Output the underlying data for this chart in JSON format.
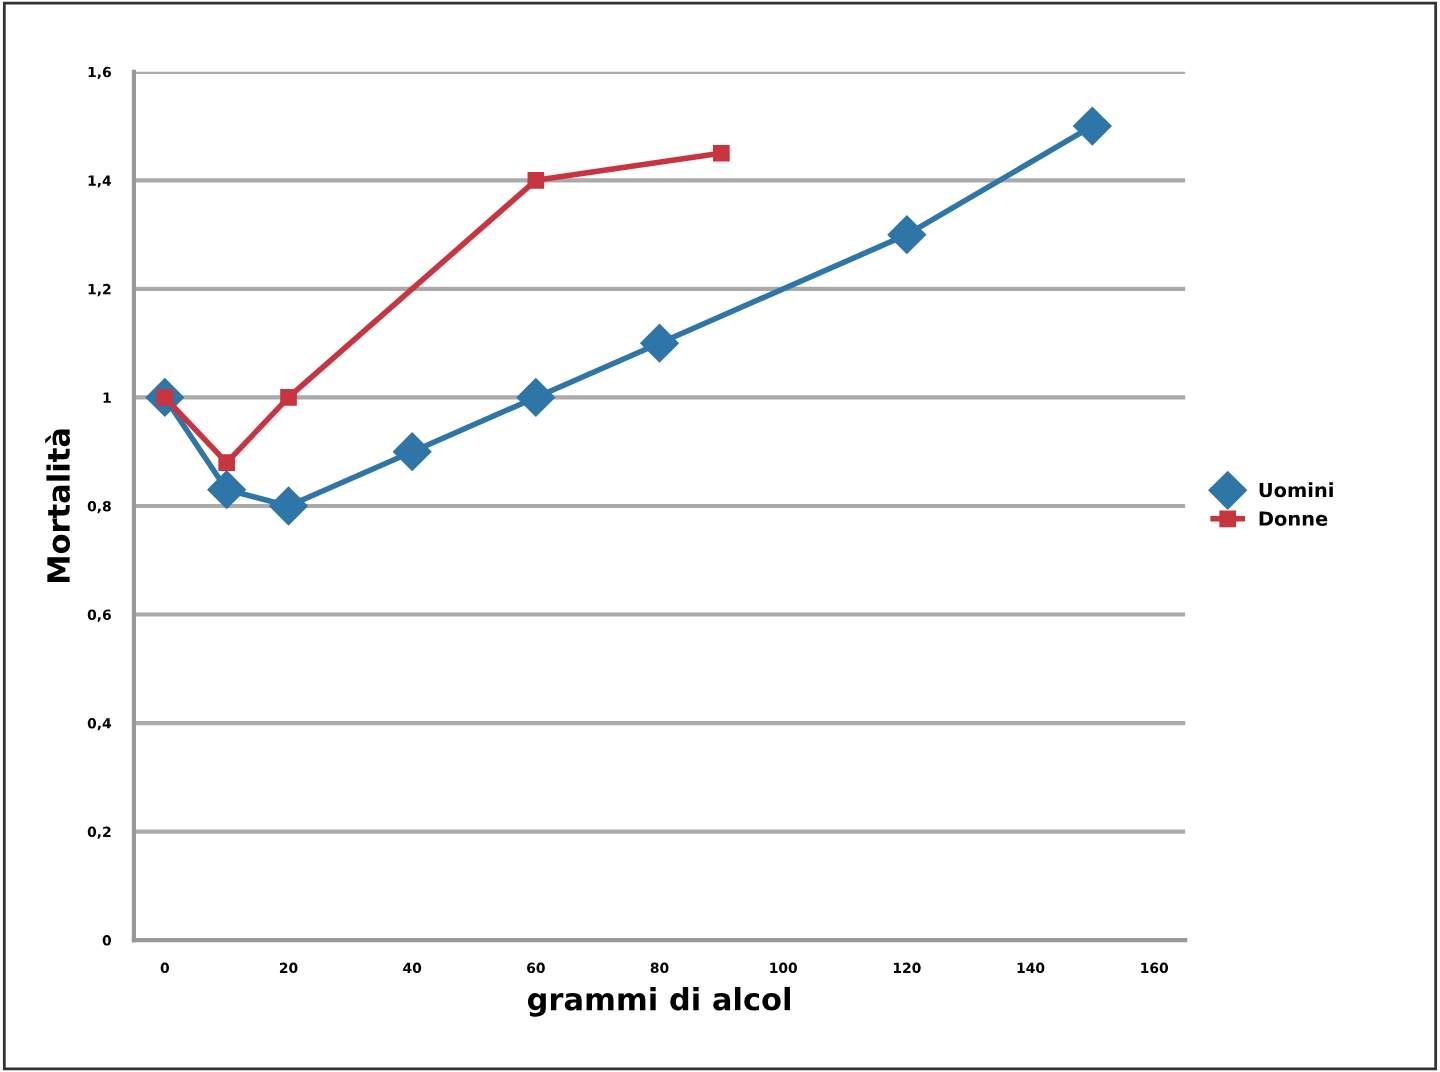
{
  "chart_data": {
    "type": "line",
    "xlabel": "grammi di alcol",
    "ylabel": "Mortalità",
    "xlim": [
      -5,
      165
    ],
    "xticks": [
      0,
      20,
      40,
      60,
      80,
      100,
      120,
      140,
      160
    ],
    "ylim": [
      0,
      1.6
    ],
    "yticks": [
      {
        "value": 0,
        "label": "0"
      },
      {
        "value": 0.2,
        "label": "0,2"
      },
      {
        "value": 0.4,
        "label": "0,4"
      },
      {
        "value": 0.6,
        "label": "0,6"
      },
      {
        "value": 0.8,
        "label": "0,8"
      },
      {
        "value": 1,
        "label": "1"
      },
      {
        "value": 1.2,
        "label": "1,2"
      },
      {
        "value": 1.4,
        "label": "1,4"
      },
      {
        "value": 1.6,
        "label": "1,6"
      }
    ],
    "grid": "y",
    "legend": "right",
    "series": [
      {
        "name": "Uomini",
        "color": "#2e75a8",
        "marker": "diamond",
        "x": [
          0,
          10,
          20,
          40,
          60,
          80,
          120,
          150
        ],
        "values": [
          1,
          0.83,
          0.8,
          0.9,
          1.0,
          1.1,
          1.3,
          1.5
        ]
      },
      {
        "name": "Donne",
        "color": "#c8343f",
        "marker": "square",
        "x": [
          0,
          10,
          20,
          60,
          90
        ],
        "values": [
          1,
          0.88,
          1.0,
          1.4,
          1.45
        ]
      }
    ]
  }
}
